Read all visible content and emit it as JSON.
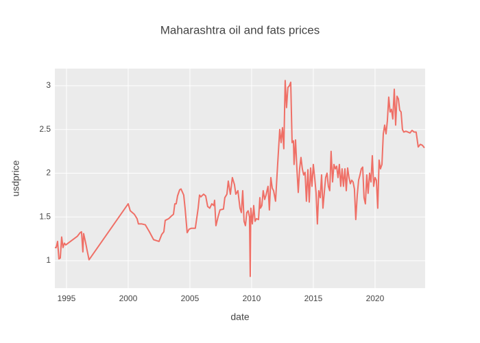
{
  "chart_data": {
    "type": "line",
    "title": "Maharashtra oil and fats prices",
    "x_label": "date",
    "y_label": "usdprice",
    "xlim": [
      1994.06,
      2024.06
    ],
    "ylim": [
      0.686,
      3.196
    ],
    "xticks": [
      1995,
      2000,
      2005,
      2010,
      2015,
      2020
    ],
    "yticks": [
      1,
      1.5,
      2,
      2.5,
      3
    ],
    "grid": true,
    "series": [
      {
        "name": "usdprice",
        "color": "#ef6f66",
        "x": [
          1994.06,
          1994.17,
          1994.28,
          1994.39,
          1994.5,
          1994.61,
          1994.72,
          1994.83,
          1994.94,
          1995.89,
          1996.11,
          1996.22,
          1996.33,
          1996.39,
          1996.56,
          1996.67,
          1996.83,
          2000,
          2000.17,
          2000.5,
          2000.72,
          2000.83,
          2001.11,
          2001.39,
          2001.72,
          2002.06,
          2002.5,
          2002.72,
          2002.89,
          2003,
          2003.28,
          2003.5,
          2003.67,
          2003.78,
          2003.89,
          2004,
          2004.17,
          2004.28,
          2004.5,
          2004.61,
          2004.78,
          2004.94,
          2005.11,
          2005.44,
          2005.67,
          2005.78,
          2005.89,
          2006.11,
          2006.28,
          2006.44,
          2006.61,
          2006.78,
          2006.94,
          2007,
          2007.11,
          2007.28,
          2007.44,
          2007.72,
          2007.83,
          2008,
          2008.11,
          2008.28,
          2008.44,
          2008.61,
          2008.72,
          2008.89,
          2009.06,
          2009.17,
          2009.28,
          2009.39,
          2009.5,
          2009.61,
          2009.72,
          2009.83,
          2009.89,
          2009.94,
          2010.06,
          2010.17,
          2010.28,
          2010.39,
          2010.56,
          2010.67,
          2010.72,
          2010.83,
          2010.94,
          2011.06,
          2011.17,
          2011.33,
          2011.44,
          2011.56,
          2011.67,
          2011.78,
          2011.94,
          2012.11,
          2012.28,
          2012.39,
          2012.5,
          2012.61,
          2012.72,
          2012.83,
          2012.94,
          2013.06,
          2013.17,
          2013.28,
          2013.39,
          2013.44,
          2013.56,
          2013.67,
          2013.78,
          2013.89,
          2014,
          2014.11,
          2014.22,
          2014.33,
          2014.44,
          2014.56,
          2014.67,
          2014.78,
          2014.89,
          2015,
          2015.11,
          2015.22,
          2015.33,
          2015.44,
          2015.56,
          2015.67,
          2015.78,
          2015.89,
          2016,
          2016.11,
          2016.22,
          2016.33,
          2016.44,
          2016.56,
          2016.67,
          2016.78,
          2016.89,
          2017,
          2017.11,
          2017.22,
          2017.33,
          2017.44,
          2017.56,
          2017.67,
          2017.78,
          2017.89,
          2018,
          2018.11,
          2018.22,
          2018.33,
          2018.44,
          2018.56,
          2018.67,
          2018.78,
          2018.89,
          2019,
          2019.11,
          2019.22,
          2019.33,
          2019.44,
          2019.56,
          2019.67,
          2019.78,
          2019.89,
          2020,
          2020.11,
          2020.22,
          2020.33,
          2020.44,
          2020.56,
          2020.67,
          2020.78,
          2020.89,
          2021,
          2021.11,
          2021.22,
          2021.33,
          2021.44,
          2021.56,
          2021.67,
          2021.78,
          2021.89,
          2022,
          2022.11,
          2022.22,
          2022.33,
          2022.5,
          2022.67,
          2022.83,
          2023,
          2023.17,
          2023.33,
          2023.5,
          2023.67,
          2023.83,
          2024
        ],
        "values": [
          1.15,
          1.15,
          1.22,
          1.02,
          1.03,
          1.27,
          1.15,
          1.2,
          1.18,
          1.28,
          1.32,
          1.33,
          1.1,
          1.31,
          1.2,
          1.12,
          1.01,
          1.65,
          1.57,
          1.53,
          1.48,
          1.42,
          1.42,
          1.41,
          1.33,
          1.24,
          1.22,
          1.3,
          1.33,
          1.46,
          1.48,
          1.51,
          1.53,
          1.65,
          1.65,
          1.74,
          1.81,
          1.82,
          1.75,
          1.6,
          1.32,
          1.36,
          1.37,
          1.37,
          1.6,
          1.75,
          1.73,
          1.76,
          1.74,
          1.62,
          1.6,
          1.65,
          1.63,
          1.69,
          1.4,
          1.5,
          1.58,
          1.59,
          1.72,
          1.76,
          1.91,
          1.76,
          1.95,
          1.87,
          1.76,
          1.8,
          1.6,
          1.55,
          1.8,
          1.45,
          1.4,
          1.55,
          1.57,
          1.5,
          0.82,
          1.6,
          1.42,
          1.63,
          1.45,
          1.48,
          1.47,
          1.72,
          1.6,
          1.63,
          1.8,
          1.7,
          1.75,
          1.85,
          1.58,
          1.95,
          1.83,
          1.8,
          1.68,
          2.1,
          2.5,
          2.35,
          2.52,
          2.28,
          3.06,
          2.75,
          2.98,
          3.0,
          3.04,
          2.35,
          2.37,
          2.1,
          2.38,
          2.05,
          1.78,
          2.05,
          2.18,
          2.05,
          1.98,
          2.01,
          1.68,
          2.04,
          1.67,
          2.06,
          1.85,
          2.1,
          1.95,
          1.78,
          1.42,
          1.8,
          1.72,
          1.98,
          1.6,
          1.78,
          1.95,
          2.0,
          1.85,
          1.8,
          2.25,
          1.9,
          2.1,
          2.05,
          2.08,
          1.95,
          2.1,
          1.85,
          2.05,
          1.85,
          2.05,
          1.8,
          2.06,
          1.95,
          1.88,
          1.92,
          1.9,
          1.82,
          1.47,
          1.75,
          1.92,
          1.98,
          2.05,
          2.07,
          1.72,
          1.65,
          1.98,
          1.77,
          2.0,
          1.9,
          2.2,
          1.85,
          1.95,
          1.92,
          1.6,
          2.15,
          2.05,
          2.1,
          2.45,
          2.55,
          2.45,
          2.6,
          2.87,
          2.7,
          2.73,
          2.62,
          2.96,
          2.55,
          2.88,
          2.85,
          2.72,
          2.7,
          2.5,
          2.47,
          2.48,
          2.47,
          2.46,
          2.49,
          2.47,
          2.47,
          2.3,
          2.33,
          2.32,
          2.29
        ]
      }
    ]
  }
}
